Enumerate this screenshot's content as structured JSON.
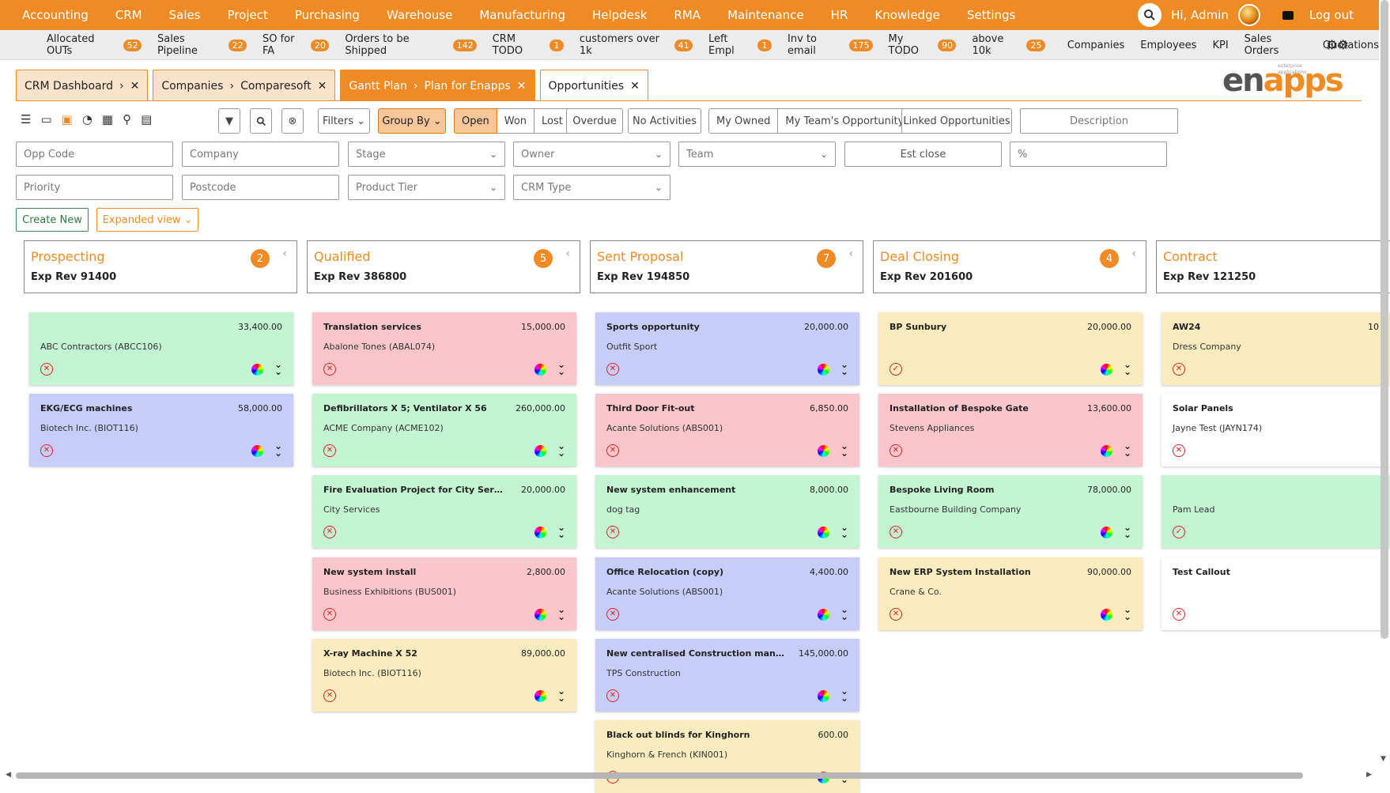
{
  "nav": {
    "menu": [
      "Accounting",
      "CRM",
      "Sales",
      "Project",
      "Purchasing",
      "Warehouse",
      "Manufacturing",
      "Helpdesk",
      "RMA",
      "Maintenance",
      "HR",
      "Knowledge",
      "Settings"
    ],
    "greeting": "Hi, Admin",
    "logout": "Log out"
  },
  "bookmarks": [
    {
      "label": "Allocated OUTs",
      "count": "52"
    },
    {
      "label": "Sales Pipeline",
      "count": "22"
    },
    {
      "label": "SO for FA",
      "count": "20"
    },
    {
      "label": "Orders to be Shipped",
      "count": "142"
    },
    {
      "label": "CRM TODO",
      "count": "1"
    },
    {
      "label": "customers over 1k",
      "count": "41"
    },
    {
      "label": "Left Empl",
      "count": "1"
    },
    {
      "label": "Inv to email",
      "count": "175"
    },
    {
      "label": "My TODO",
      "count": "90"
    },
    {
      "label": "above 10k",
      "count": "25"
    },
    {
      "label": "Companies",
      "count": ""
    },
    {
      "label": "Employees",
      "count": ""
    },
    {
      "label": "KPI",
      "count": ""
    },
    {
      "label": "Sales Orders",
      "count": ""
    },
    {
      "label": "Quotations",
      "count": ""
    }
  ],
  "tabs": [
    {
      "a": "CRM Dashboard",
      "b": ""
    },
    {
      "a": "Companies",
      "b": "Comparesoft"
    },
    {
      "a": "Gantt Plan",
      "b": "Plan for Enapps"
    },
    {
      "a": "Opportunities",
      "b": ""
    }
  ],
  "logo": {
    "en": "en",
    "apps": "apps",
    "tag": "enterprise applications"
  },
  "toolbar": {
    "filters": "Filters",
    "group_by": "Group By",
    "status": [
      "Open",
      "Won",
      "Lost"
    ],
    "overdue": "Overdue",
    "no_activities": "No Activities",
    "owned": [
      "My Owned",
      "My Team's Opportunity"
    ],
    "linked": "Linked Opportunities",
    "description": "Description"
  },
  "fields": {
    "opp_code": "Opp Code",
    "company": "Company",
    "stage": "Stage",
    "owner": "Owner",
    "team": "Team",
    "est_close": "Est close",
    "percent": "%",
    "priority": "Priority",
    "postcode": "Postcode",
    "product_tier": "Product Tier",
    "crm_type": "CRM Type"
  },
  "actions": {
    "create_new": "Create New",
    "expanded_view": "Expanded view"
  },
  "columns": [
    {
      "title": "Prospecting",
      "count": "2",
      "rev": "Exp Rev 91400",
      "cards": [
        {
          "name": "",
          "amount": "33,400.00",
          "company": "ABC Contractors (ABCC106)",
          "color": "green",
          "status": "lost"
        },
        {
          "name": "EKG/ECG machines",
          "amount": "58,000.00",
          "company": "Biotech Inc. (BIOT116)",
          "color": "blue",
          "status": "lost"
        }
      ]
    },
    {
      "title": "Qualified",
      "count": "5",
      "rev": "Exp Rev 386800",
      "cards": [
        {
          "name": "Translation services",
          "amount": "15,000.00",
          "company": "Abalone Tones (ABAL074)",
          "color": "pink",
          "status": "lost"
        },
        {
          "name": "Defibrillators X 5; Ventilator X 56",
          "amount": "260,000.00",
          "company": "ACME Company (ACME102)",
          "color": "green",
          "status": "lost"
        },
        {
          "name": "Fire Evaluation Project for City Services",
          "amount": "20,000.00",
          "company": "City Services",
          "color": "green",
          "status": "lost"
        },
        {
          "name": "New system install",
          "amount": "2,800.00",
          "company": "Business Exhibitions (BUS001)",
          "color": "pink",
          "status": "lost"
        },
        {
          "name": "X-ray Machine X 52",
          "amount": "89,000.00",
          "company": "Biotech Inc. (BIOT116)",
          "color": "yellow",
          "status": "lost"
        }
      ]
    },
    {
      "title": "Sent Proposal",
      "count": "7",
      "rev": "Exp Rev 194850",
      "cards": [
        {
          "name": "Sports opportunity",
          "amount": "20,000.00",
          "company": "Outfit Sport",
          "color": "blue",
          "status": "lost"
        },
        {
          "name": "Third Door Fit-out",
          "amount": "6,850.00",
          "company": "Acante Solutions (ABS001)",
          "color": "pink",
          "status": "lost"
        },
        {
          "name": "New system enhancement",
          "amount": "8,000.00",
          "company": "dog tag",
          "color": "green",
          "status": "lost"
        },
        {
          "name": "Office Relocation (copy)",
          "amount": "4,400.00",
          "company": "Acante Solutions (ABS001)",
          "color": "blue",
          "status": "lost"
        },
        {
          "name": "New centralised Construction manage...",
          "amount": "145,000.00",
          "company": "TPS Construction",
          "color": "blue",
          "status": "lost"
        },
        {
          "name": "Black out blinds for Kinghorn",
          "amount": "600.00",
          "company": "Kinghorn & French (KIN001)",
          "color": "yellow",
          "status": "lost"
        }
      ]
    },
    {
      "title": "Deal Closing",
      "count": "4",
      "rev": "Exp Rev 201600",
      "cards": [
        {
          "name": "BP Sunbury",
          "amount": "20,000.00",
          "company": "",
          "color": "yellow",
          "status": "won"
        },
        {
          "name": "Installation of Bespoke Gate",
          "amount": "13,600.00",
          "company": "Stevens Appliances",
          "color": "pink",
          "status": "lost"
        },
        {
          "name": "Bespoke Living Room",
          "amount": "78,000.00",
          "company": "Eastbourne Building Company",
          "color": "green",
          "status": "lost"
        },
        {
          "name": "New ERP System Installation",
          "amount": "90,000.00",
          "company": "Crane & Co.",
          "color": "yellow",
          "status": "lost"
        }
      ]
    },
    {
      "title": "Contract",
      "count": "",
      "rev": "Exp Rev 121250",
      "cards": [
        {
          "name": "AW24",
          "amount": "10",
          "company": "Dress Company",
          "color": "yellow",
          "status": "lost"
        },
        {
          "name": "Solar Panels",
          "amount": "",
          "company": "Jayne Test (JAYN174)",
          "color": "white",
          "status": "lost"
        },
        {
          "name": "",
          "amount": "",
          "company": "Pam Lead",
          "color": "green",
          "status": "won"
        },
        {
          "name": "Test Callout",
          "amount": "",
          "company": "",
          "color": "white",
          "status": "lost"
        }
      ]
    }
  ],
  "icons": {
    "search": "search-icon",
    "wallet": "wallet-icon",
    "settings": "gears-icon",
    "close": "close-icon",
    "color": "color-wheel-icon",
    "expand": "double-chevron-down-icon"
  },
  "colors": {
    "accent": "#f08a24",
    "green": "#c4f5d3",
    "pink": "#fac6cb",
    "blue": "#c5cdf8",
    "yellow": "#fbecc0"
  }
}
